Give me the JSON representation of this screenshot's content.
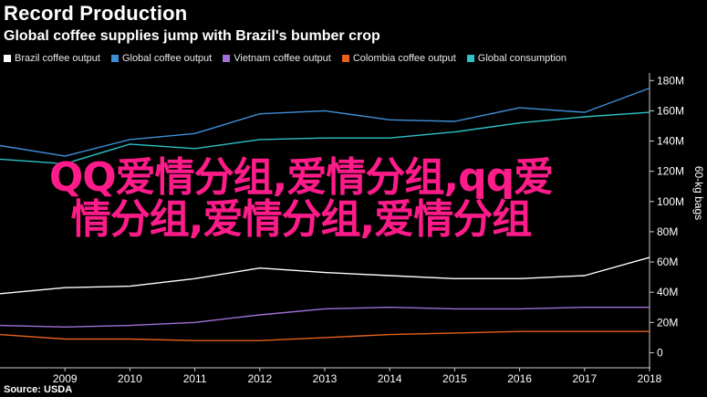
{
  "header": {
    "title": "Record Production",
    "subtitle": "Global coffee supplies jump with Brazil's bumber crop"
  },
  "footer": {
    "source": "Source: USDA"
  },
  "overlay": {
    "line1": "QQ爱情分组,爱情分组,qq爱",
    "line2": "情分组,爱情分组,爱情分组"
  },
  "colors": {
    "background": "#000000",
    "axis": "#cccccc",
    "overlay_text": "#ff1c8a"
  },
  "chart_data": {
    "type": "line",
    "title": "Record Production",
    "subtitle": "Global coffee supplies jump with Brazil's bumber crop",
    "ylabel": "60-kg bags",
    "xlabel": "",
    "x": [
      2008,
      2009,
      2010,
      2011,
      2012,
      2013,
      2014,
      2015,
      2016,
      2017,
      2018
    ],
    "xticks": [
      "2009",
      "2010",
      "2011",
      "2012",
      "2013",
      "2014",
      "2015",
      "2016",
      "2017",
      "2018"
    ],
    "xlim": [
      2008,
      2018
    ],
    "ylim": [
      -10,
      185
    ],
    "yticks": [
      0,
      20,
      40,
      60,
      80,
      100,
      120,
      140,
      160,
      180
    ],
    "yticklabels": [
      "0",
      "20M",
      "40M",
      "60M",
      "80M",
      "100M",
      "120M",
      "140M",
      "160M",
      "180M"
    ],
    "yaxis_position": "right",
    "grid": false,
    "legend_position": "top",
    "series": [
      {
        "name": "Brazil coffee output",
        "color": "#ffffff",
        "values": [
          39,
          43,
          44,
          49,
          56,
          53,
          51,
          49,
          49,
          51,
          63
        ]
      },
      {
        "name": "Global coffee output",
        "color": "#3f8fd8",
        "values": [
          137,
          130,
          141,
          145,
          158,
          160,
          154,
          153,
          162,
          159,
          175
        ]
      },
      {
        "name": "Vietnam coffee output",
        "color": "#a070d8",
        "values": [
          18,
          17,
          18,
          20,
          25,
          29,
          30,
          29,
          29,
          30,
          30
        ]
      },
      {
        "name": "Colombia coffee output",
        "color": "#e8601c",
        "values": [
          12,
          9,
          9,
          8,
          8,
          10,
          12,
          13,
          14,
          14,
          14
        ]
      },
      {
        "name": "Global consumption",
        "color": "#2cc2c8",
        "values": [
          128,
          125,
          138,
          135,
          141,
          142,
          142,
          146,
          152,
          156,
          159
        ]
      }
    ]
  }
}
